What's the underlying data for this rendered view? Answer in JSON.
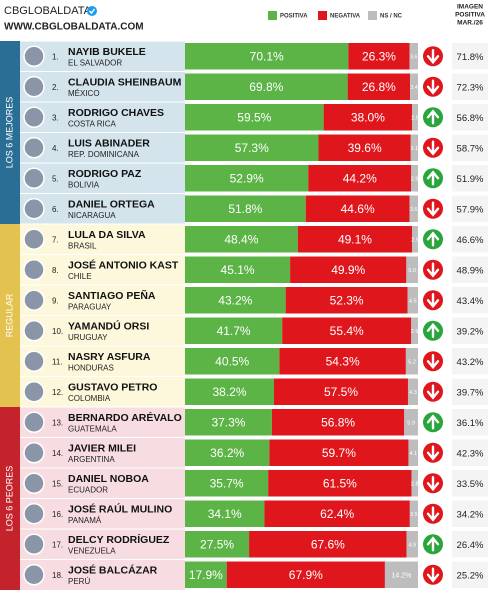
{
  "chart_data": {
    "type": "bar",
    "orientation": "horizontal",
    "stacked": true,
    "brand": "CBGLOBALDATA",
    "website": "WWW.CBGLOBALDATA.COM",
    "ranks": [
      "1.",
      "2.",
      "3.",
      "4.",
      "5.",
      "6.",
      "7.",
      "8.",
      "9.",
      "10.",
      "11.",
      "12.",
      "13.",
      "14.",
      "15.",
      "16.",
      "17.",
      "18."
    ],
    "categories": [
      "NAYIB BUKELE",
      "CLAUDIA SHEINBAUM",
      "RODRIGO CHAVES",
      "LUIS ABINADER",
      "RODRIGO PAZ",
      "DANIEL ORTEGA",
      "LULA DA SILVA",
      "JOSÉ ANTONIO KAST",
      "SANTIAGO PEÑA",
      "YAMANDÚ ORSI",
      "NASRY ASFURA",
      "GUSTAVO PETRO",
      "BERNARDO ARÉVALO",
      "JAVIER MILEI",
      "DANIEL NOBOA",
      "JOSÉ RAÚL MULINO",
      "DELCY RODRÍGUEZ",
      "JOSÉ BALCÁZAR"
    ],
    "countries": [
      "EL SALVADOR",
      "MÉXICO",
      "COSTA RICA",
      "REP. DOMINICANA",
      "BOLIVIA",
      "NICARAGUA",
      "BRASIL",
      "CHILE",
      "PARAGUAY",
      "URUGUAY",
      "HONDURAS",
      "COLOMBIA",
      "GUATEMALA",
      "ARGENTINA",
      "ECUADOR",
      "PANAMÁ",
      "VENEZUELA",
      "PERÚ"
    ],
    "groups": [
      {
        "label": "LOS 6 MEJORES",
        "size": 6,
        "color": "#2b6e95",
        "background": "#d3e4ec"
      },
      {
        "label": "REGULAR",
        "size": 6,
        "color": "#e3c24f",
        "background": "#fdf8dc"
      },
      {
        "label": "LOS 6 PEORES",
        "size": 6,
        "color": "#c4232b",
        "background": "#f7dde1"
      }
    ],
    "xlim": [
      0,
      100
    ],
    "series": [
      {
        "name": "POSITIVA",
        "color": "#5cb447",
        "values": [
          70.1,
          69.8,
          59.5,
          57.3,
          52.9,
          51.8,
          48.4,
          45.1,
          43.2,
          41.7,
          40.5,
          38.2,
          37.3,
          36.2,
          35.7,
          34.1,
          27.5,
          17.9
        ],
        "value_labels": [
          "70.1%",
          "69.8%",
          "59.5%",
          "57.3%",
          "52.9%",
          "51.8%",
          "48.4%",
          "45.1%",
          "43.2%",
          "41.7%",
          "40.5%",
          "38.2%",
          "37.3%",
          "36.2%",
          "35.7%",
          "34.1%",
          "27.5%",
          "17.9%"
        ]
      },
      {
        "name": "NEGATIVA",
        "color": "#e0161d",
        "values": [
          26.3,
          26.8,
          38.0,
          39.6,
          44.2,
          44.6,
          49.1,
          49.9,
          52.3,
          55.4,
          54.3,
          57.5,
          56.8,
          59.7,
          61.5,
          62.4,
          67.6,
          67.9
        ],
        "value_labels": [
          "26.3%",
          "26.8%",
          "38.0%",
          "39.6%",
          "44.2%",
          "44.6%",
          "49.1%",
          "49.9%",
          "52.3%",
          "55.4%",
          "54.3%",
          "57.5%",
          "56.8%",
          "59.7%",
          "61.5%",
          "62.4%",
          "67.6%",
          "67.9%"
        ]
      },
      {
        "name": "NS / NC",
        "color": "#bdbdbd",
        "values": [
          3.6,
          3.4,
          2.5,
          3.1,
          2.9,
          3.6,
          2.5,
          5.0,
          4.5,
          2.9,
          5.2,
          4.3,
          5.9,
          4.1,
          2.8,
          3.5,
          4.9,
          14.2
        ],
        "value_labels": [
          "3.6",
          "3.4",
          "2.5",
          "3.1",
          "2.9",
          "3.6",
          "2.5",
          "5.0",
          "4.5",
          "2.9",
          "5.2",
          "4.3",
          "5.9",
          "4.1",
          "2.8",
          "3.5",
          "4.9",
          "14.2%"
        ]
      }
    ],
    "trend": [
      "down",
      "down",
      "up",
      "down",
      "up",
      "down",
      "up",
      "down",
      "down",
      "up",
      "down",
      "down",
      "up",
      "down",
      "down",
      "down",
      "up",
      "down"
    ],
    "side_column": {
      "title_lines": [
        "IMAGEN",
        "POSITIVA",
        "MAR./26"
      ],
      "values": [
        71.8,
        72.3,
        56.8,
        58.7,
        51.9,
        57.9,
        46.6,
        48.9,
        43.4,
        39.2,
        43.2,
        39.7,
        36.1,
        42.3,
        33.5,
        34.2,
        26.4,
        25.2
      ],
      "value_labels": [
        "71.8%",
        "72.3%",
        "56.8%",
        "58.7%",
        "51.9%",
        "57.9%",
        "46.6%",
        "48.9%",
        "43.4%",
        "39.2%",
        "43.2%",
        "39.7%",
        "36.1%",
        "42.3%",
        "33.5%",
        "34.2%",
        "26.4%",
        "25.2%"
      ]
    }
  }
}
